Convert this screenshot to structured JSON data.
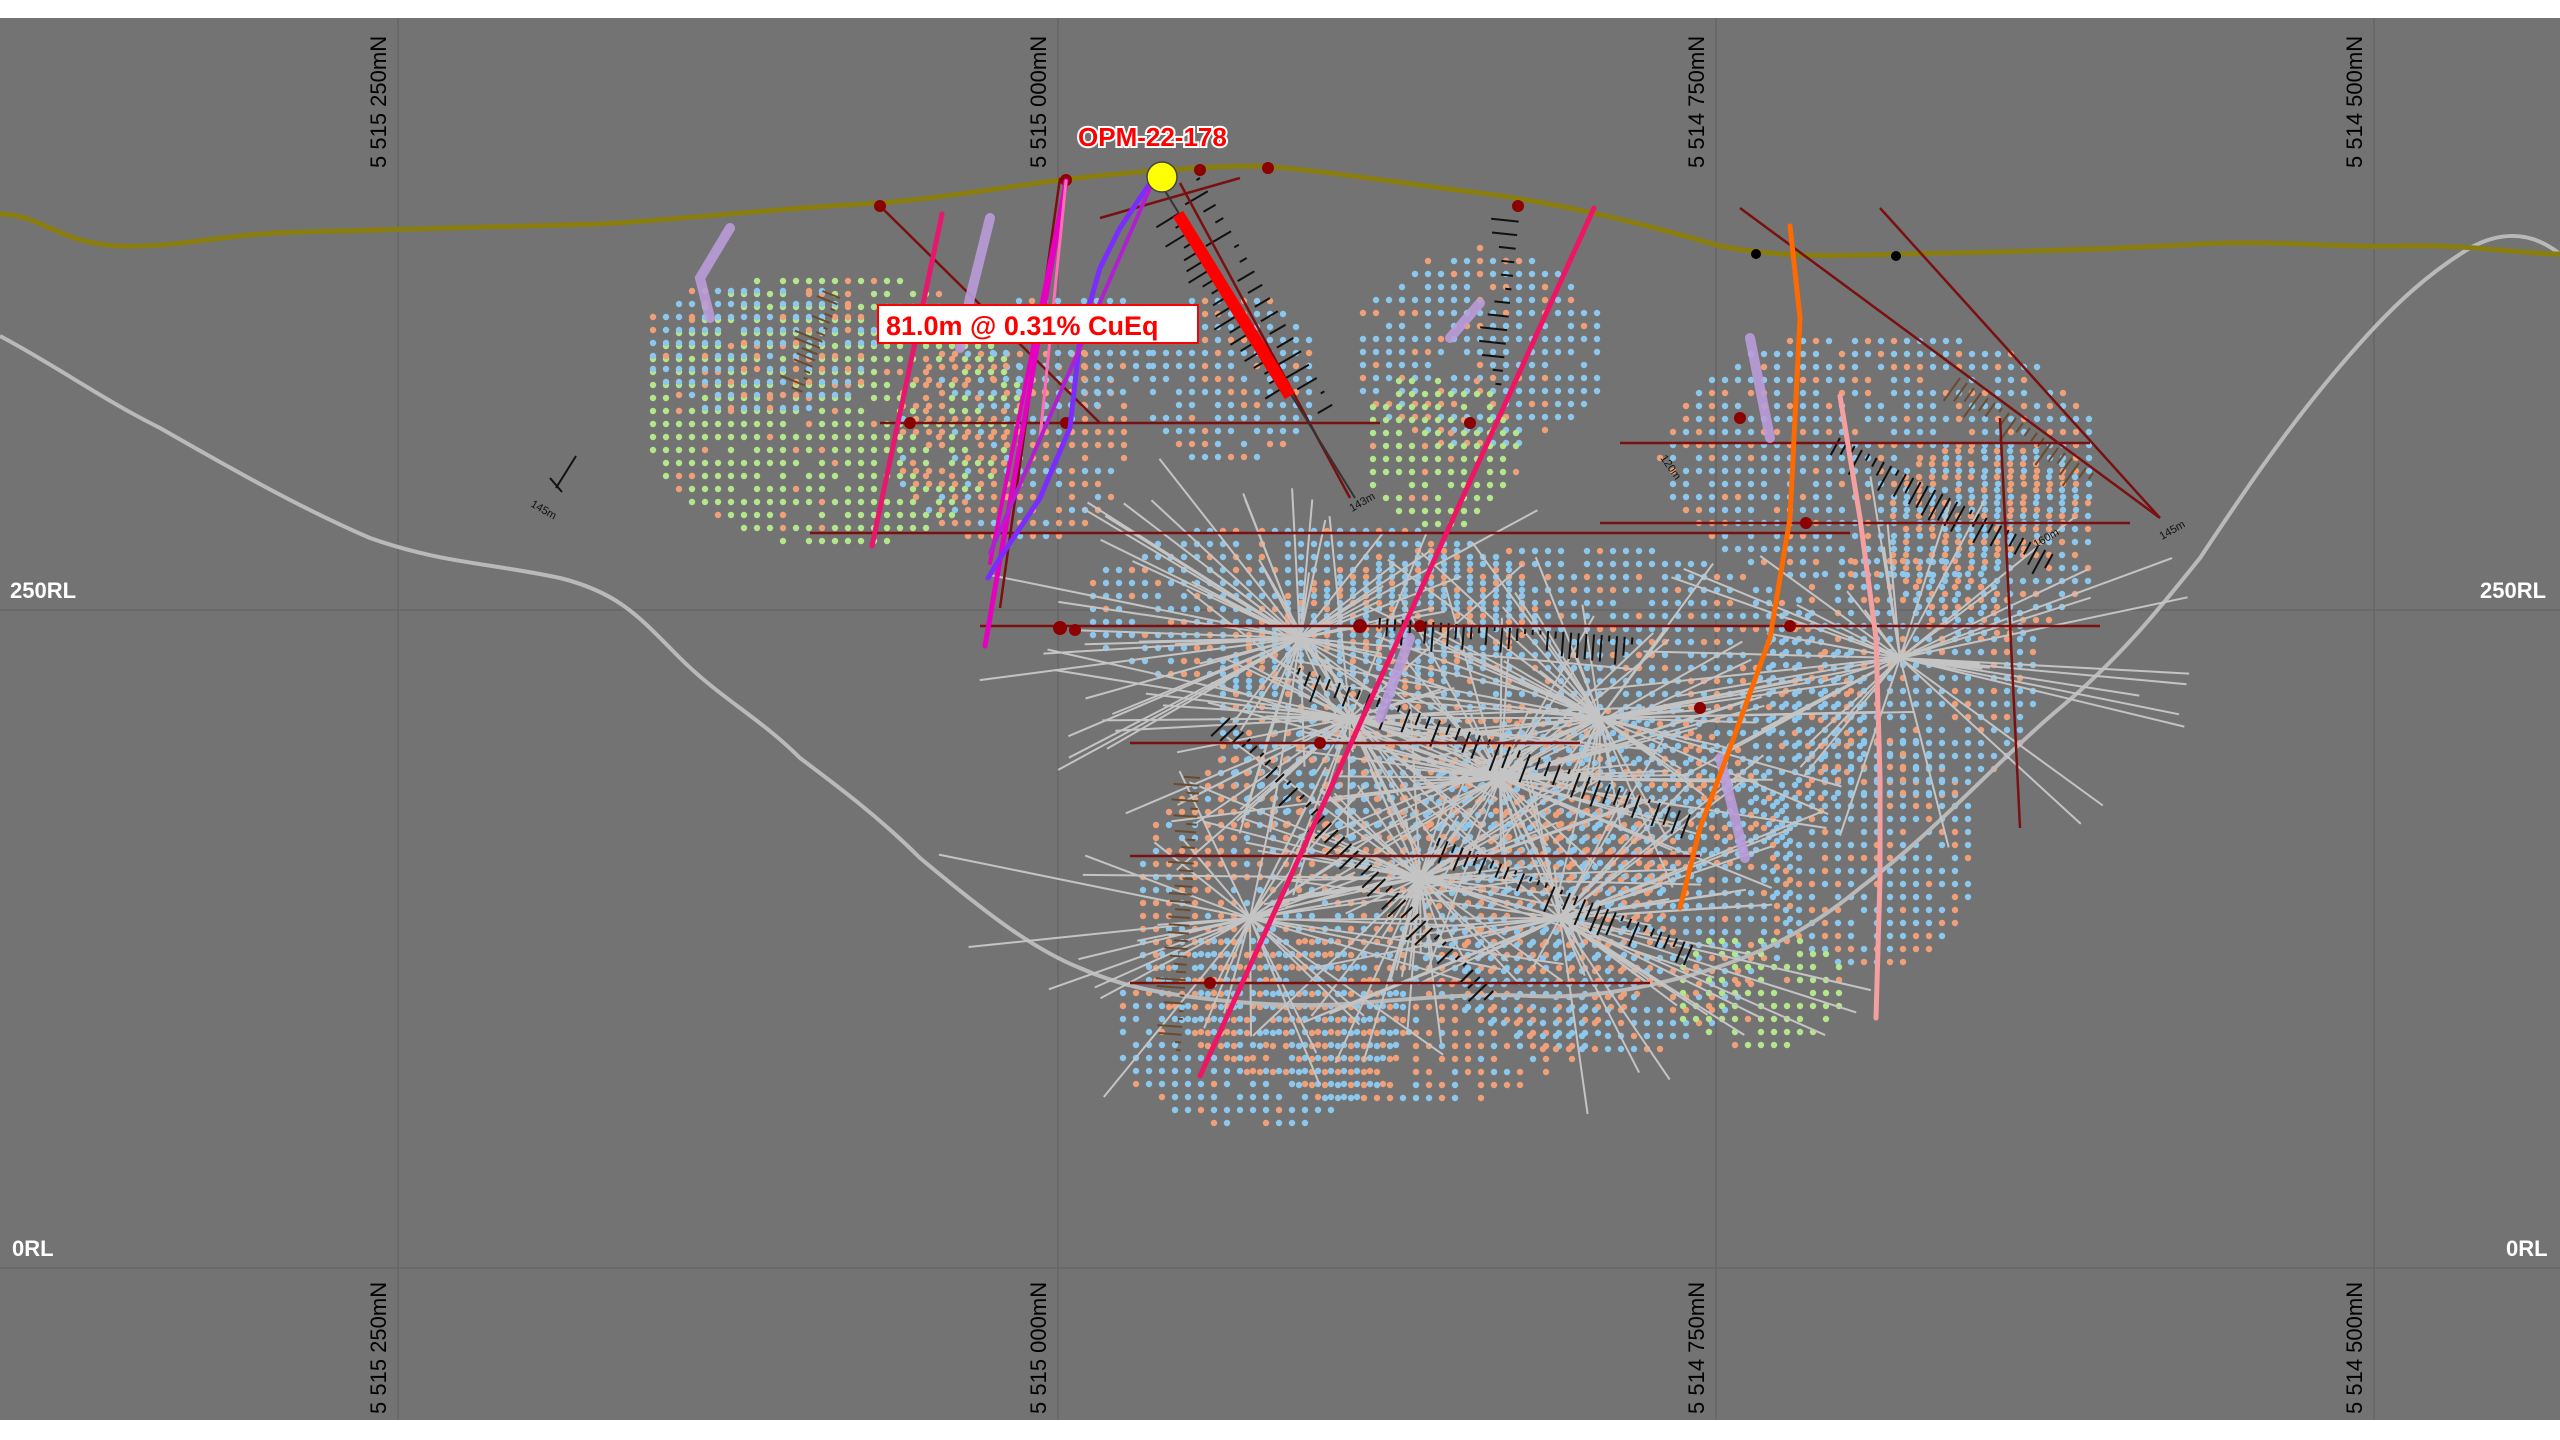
{
  "section": {
    "northing_labels": [
      "5 515 250mN",
      "5 515 000mN",
      "5 514 750mN",
      "5 514 500mN"
    ],
    "rl_labels": [
      "250RL",
      "0RL"
    ],
    "drillhole": "OPM-22-178",
    "intercept": "81.0m @ 0.31% CuEq"
  },
  "colors": {
    "background": "#737373",
    "topography": "#8a7d10",
    "pit_shell": "#b9b9b9",
    "highlight_hole": "#ff0000",
    "collar_marker": "#ffff00",
    "block_low": "#8cc8ee",
    "block_mid": "#b4e68c",
    "block_high": "#f0a078"
  }
}
